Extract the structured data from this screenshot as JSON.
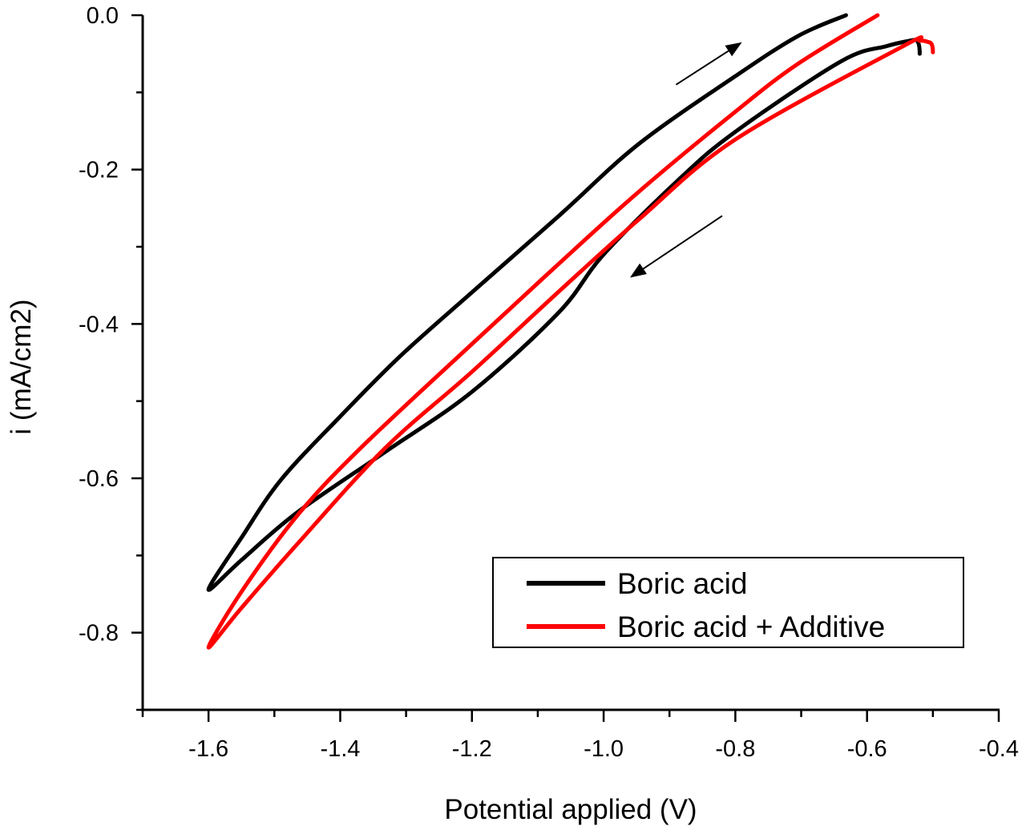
{
  "chart_data": {
    "type": "line",
    "title": "",
    "xlabel": "Potential applied (V)",
    "ylabel": "i (mA/cm2)",
    "xlim": [
      -1.7,
      -0.4
    ],
    "ylim": [
      -0.9,
      0.0
    ],
    "x_ticks": [
      -1.6,
      -1.4,
      -1.2,
      -1.0,
      -0.8,
      -0.6,
      -0.4
    ],
    "x_tick_labels": [
      "-1.6",
      "-1.4",
      "-1.2",
      "-1.0",
      "-0.8",
      "-0.6",
      "-0.4"
    ],
    "y_ticks": [
      0.0,
      -0.2,
      -0.4,
      -0.6,
      -0.8
    ],
    "y_tick_labels": [
      "0.0",
      "-0.2",
      "-0.4",
      "-0.6",
      "-0.8"
    ],
    "grid": false,
    "legend_position": "lower right",
    "series": [
      {
        "name": "Boric acid",
        "color": "#000000",
        "points": [
          [
            -0.527,
            -0.032
          ],
          [
            -0.535,
            -0.033
          ],
          [
            -0.57,
            -0.04
          ],
          [
            -0.64,
            -0.06
          ],
          [
            -0.8,
            -0.151
          ],
          [
            -0.886,
            -0.213
          ],
          [
            -1.0,
            -0.31
          ],
          [
            -1.068,
            -0.385
          ],
          [
            -1.2,
            -0.488
          ],
          [
            -1.332,
            -0.566
          ],
          [
            -1.465,
            -0.644
          ],
          [
            -1.55,
            -0.706
          ],
          [
            -1.6,
            -0.744
          ],
          [
            -1.55,
            -0.677
          ],
          [
            -1.49,
            -0.602
          ],
          [
            -1.399,
            -0.519
          ],
          [
            -1.308,
            -0.441
          ],
          [
            -1.2,
            -0.359
          ],
          [
            -1.068,
            -0.26
          ],
          [
            -0.947,
            -0.167
          ],
          [
            -0.8,
            -0.079
          ],
          [
            -0.705,
            -0.027
          ],
          [
            -0.632,
            0.0
          ]
        ],
        "end_tail": [
          [
            -0.527,
            -0.032
          ],
          [
            -0.52,
            -0.05
          ]
        ]
      },
      {
        "name": "Boric acid + Additive",
        "color": "#ff0000",
        "points": [
          [
            -0.506,
            -0.035
          ],
          [
            -0.52,
            -0.033
          ],
          [
            -0.545,
            -0.04
          ],
          [
            -0.8,
            -0.161
          ],
          [
            -0.947,
            -0.265
          ],
          [
            -1.068,
            -0.358
          ],
          [
            -1.2,
            -0.462
          ],
          [
            -1.332,
            -0.561
          ],
          [
            -1.465,
            -0.685
          ],
          [
            -1.55,
            -0.768
          ],
          [
            -1.6,
            -0.819
          ],
          [
            -1.55,
            -0.747
          ],
          [
            -1.465,
            -0.648
          ],
          [
            -1.368,
            -0.56
          ],
          [
            -1.2,
            -0.426
          ],
          [
            -1.068,
            -0.322
          ],
          [
            -0.947,
            -0.229
          ],
          [
            -0.8,
            -0.125
          ],
          [
            -0.705,
            -0.063
          ],
          [
            -0.584,
            0.0
          ]
        ],
        "end_tail": [
          [
            -0.506,
            -0.035
          ],
          [
            -0.5,
            -0.048
          ]
        ]
      }
    ],
    "annotations": [
      {
        "type": "arrow",
        "direction": "forward scan (up-right)",
        "from": [
          -0.89,
          -0.09
        ],
        "to": [
          -0.79,
          -0.035
        ]
      },
      {
        "type": "arrow",
        "direction": "reverse scan (down-left)",
        "from": [
          -0.82,
          -0.26
        ],
        "to": [
          -0.96,
          -0.34
        ]
      }
    ]
  },
  "legend": {
    "items": [
      {
        "label": "Boric acid",
        "color": "#000000"
      },
      {
        "label": "Boric acid + Additive",
        "color": "#ff0000"
      }
    ]
  },
  "axes": {
    "x_title": "Potential applied (V)",
    "y_title": "i (mA/cm2)"
  }
}
